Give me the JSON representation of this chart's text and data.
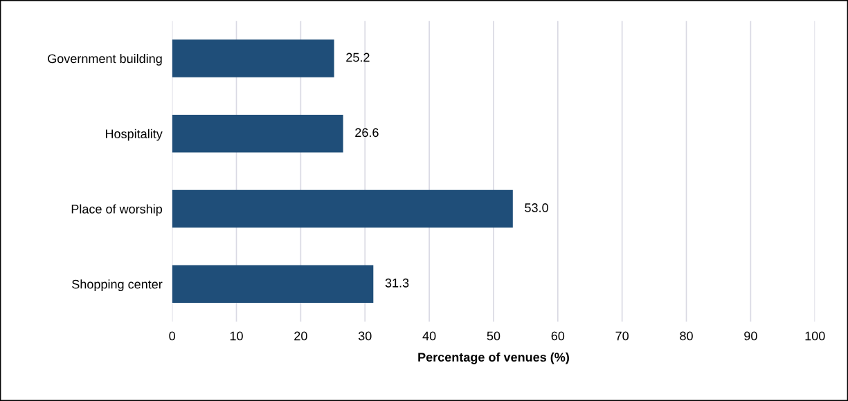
{
  "chart_data": {
    "type": "bar",
    "orientation": "horizontal",
    "xlabel": "Percentage of venues (%)",
    "categories": [
      "Government building",
      "Hospitality",
      "Place of worship",
      "Shopping center"
    ],
    "values": [
      25.2,
      26.6,
      53.0,
      31.3
    ],
    "value_labels": [
      "25.2",
      "26.6",
      "53.0",
      "31.3"
    ],
    "color": "#1f4e79",
    "xlim": [
      0,
      100
    ],
    "xticks": [
      0,
      10,
      20,
      30,
      40,
      50,
      60,
      70,
      80,
      90,
      100
    ],
    "grid": "x"
  }
}
